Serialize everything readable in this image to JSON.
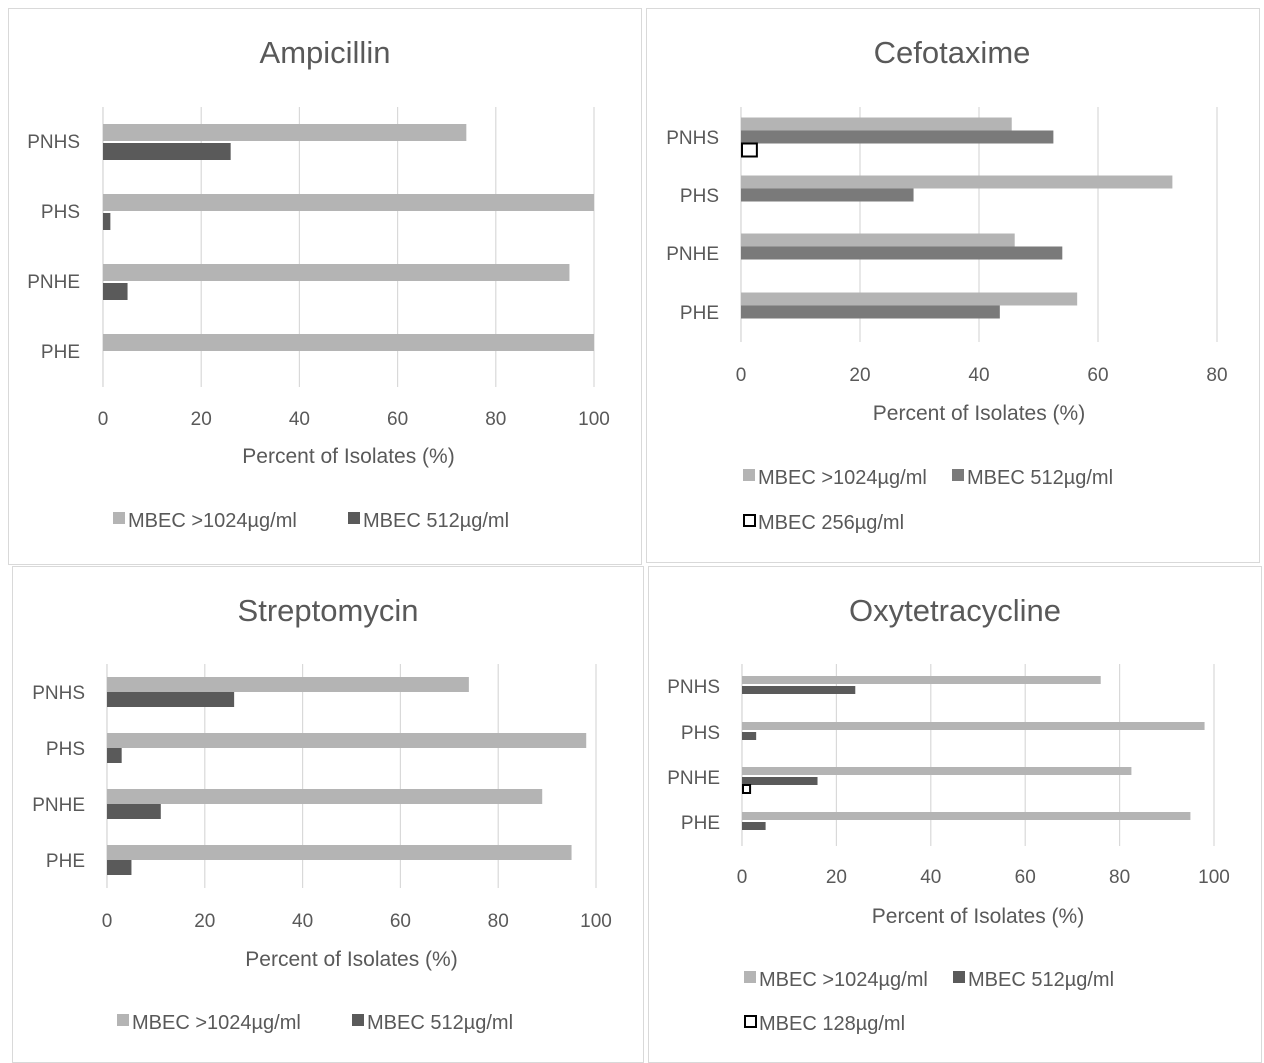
{
  "colors": {
    "greater1024": "#b4b4b4",
    "mbec512": "#5a5a5a",
    "mbec512_cef": "#7a7a7a",
    "grid": "#d9d9d9",
    "text": "#595959",
    "outline": "#000000"
  },
  "chart_data": [
    {
      "type": "bar",
      "orientation": "horizontal",
      "title": "Ampicillin",
      "categories": [
        "PNHS",
        "PHS",
        "PNHE",
        "PHE"
      ],
      "xlabel": "Percent of Isolates (%)",
      "xlim": [
        0,
        100
      ],
      "xticks": [
        "0",
        "20",
        "40",
        "60",
        "80",
        "100"
      ],
      "grid": true,
      "legend_position": "bottom",
      "series": [
        {
          "name": "MBEC >1024µg/ml",
          "values": [
            74,
            100,
            95,
            100
          ],
          "style": "light"
        },
        {
          "name": "MBEC 512µg/ml",
          "values": [
            26,
            1.5,
            5,
            0
          ],
          "style": "dark"
        }
      ]
    },
    {
      "type": "bar",
      "orientation": "horizontal",
      "title": "Cefotaxime",
      "categories": [
        "PNHS",
        "PHS",
        "PNHE",
        "PHE"
      ],
      "xlabel": "Percent of Isolates (%)",
      "xlim": [
        0,
        80
      ],
      "xticks": [
        "0",
        "20",
        "40",
        "60",
        "80"
      ],
      "grid": true,
      "legend_position": "bottom",
      "series": [
        {
          "name": "MBEC >1024µg/ml",
          "values": [
            45.5,
            72.5,
            46,
            56.5
          ],
          "style": "light"
        },
        {
          "name": "MBEC 512µg/ml",
          "values": [
            52.5,
            29,
            54,
            43.5
          ],
          "style": "medium"
        },
        {
          "name": "MBEC 256µg/ml",
          "values": [
            2.5,
            0,
            0,
            0
          ],
          "style": "outline"
        }
      ]
    },
    {
      "type": "bar",
      "orientation": "horizontal",
      "title": "Streptomycin",
      "categories": [
        "PNHS",
        "PHS",
        "PNHE",
        "PHE"
      ],
      "xlabel": "Percent of Isolates (%)",
      "xlim": [
        0,
        100
      ],
      "xticks": [
        "0",
        "20",
        "40",
        "60",
        "80",
        "100"
      ],
      "grid": true,
      "legend_position": "bottom",
      "series": [
        {
          "name": "MBEC >1024µg/ml",
          "values": [
            74,
            98,
            89,
            95
          ],
          "style": "light"
        },
        {
          "name": "MBEC 512µg/ml",
          "values": [
            26,
            3,
            11,
            5
          ],
          "style": "dark"
        }
      ]
    },
    {
      "type": "bar",
      "orientation": "horizontal",
      "title": "Oxytetracycline",
      "categories": [
        "PNHS",
        "PHS",
        "PNHE",
        "PHE"
      ],
      "xlabel": "Percent of Isolates (%)",
      "xlim": [
        0,
        100
      ],
      "xticks": [
        "0",
        "20",
        "40",
        "60",
        "80",
        "100"
      ],
      "grid": true,
      "legend_position": "bottom",
      "series": [
        {
          "name": "MBEC >1024µg/ml",
          "values": [
            76,
            98,
            82.5,
            95
          ],
          "style": "light"
        },
        {
          "name": "MBEC 512µg/ml",
          "values": [
            24,
            3,
            16,
            5
          ],
          "style": "dark"
        },
        {
          "name": "MBEC 128µg/ml",
          "values": [
            0,
            0,
            1.5,
            0
          ],
          "style": "outline"
        }
      ]
    }
  ]
}
